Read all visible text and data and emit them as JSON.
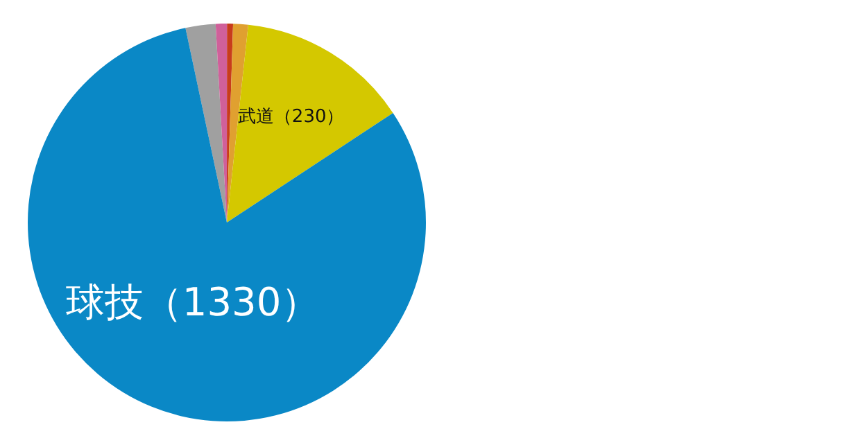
{
  "chart_data": {
    "type": "pie",
    "categories": [
      null,
      null,
      null,
      null,
      "武道（230）",
      "球技（1330）"
    ],
    "values": [
      40,
      15,
      8,
      20,
      230,
      1330
    ],
    "colors": [
      "#a0a0a0",
      "#d0609a",
      "#c83c1c",
      "#e0a030",
      "#d4c800",
      "#0a88c6"
    ],
    "legend": false
  }
}
